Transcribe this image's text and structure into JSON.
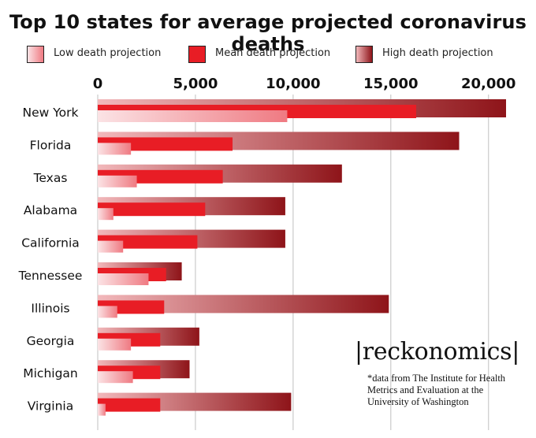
{
  "title": "Top 10 states for average projected coronavirus deaths",
  "legend": [
    {
      "label": "Low death projection",
      "swatch": "low"
    },
    {
      "label": "Mean death projection",
      "swatch": "mean"
    },
    {
      "label": "High death projection",
      "swatch": "high"
    }
  ],
  "colors": {
    "low_start": "#fbe3e5",
    "low_end": "#ef7a82",
    "mean": "#e81d25",
    "high_start": "#f2b8bb",
    "high_end": "#8e1419",
    "gridline": "#cfcfcf"
  },
  "logo": "|reckonomics|",
  "source_note": "*data from The Institute for Health Metrics and Evaluation at the University of Washington",
  "chart_data": {
    "type": "bar",
    "orientation": "horizontal",
    "title": "Top 10 states for average projected coronavirus deaths",
    "categories": [
      "New York",
      "Florida",
      "Texas",
      "Alabama",
      "California",
      "Tennessee",
      "Illinois",
      "Georgia",
      "Michigan",
      "Virginia"
    ],
    "series": [
      {
        "name": "High death projection",
        "values": [
          20900,
          18500,
          12500,
          9600,
          9600,
          4300,
          14900,
          5200,
          4700,
          9900
        ]
      },
      {
        "name": "Mean death projection",
        "values": [
          16300,
          6900,
          6400,
          5500,
          5100,
          3500,
          3400,
          3200,
          3200,
          3200
        ]
      },
      {
        "name": "Low death projection",
        "values": [
          9700,
          1700,
          2000,
          800,
          1300,
          2600,
          1000,
          1700,
          1800,
          400
        ]
      }
    ],
    "xlim": [
      0,
      20900
    ],
    "xticks": [
      0,
      5000,
      10000,
      15000,
      20000
    ],
    "xtick_labels": [
      "0",
      "5,000",
      "10,000",
      "15,000",
      "20,000"
    ],
    "grid": true,
    "legend_position": "top"
  }
}
